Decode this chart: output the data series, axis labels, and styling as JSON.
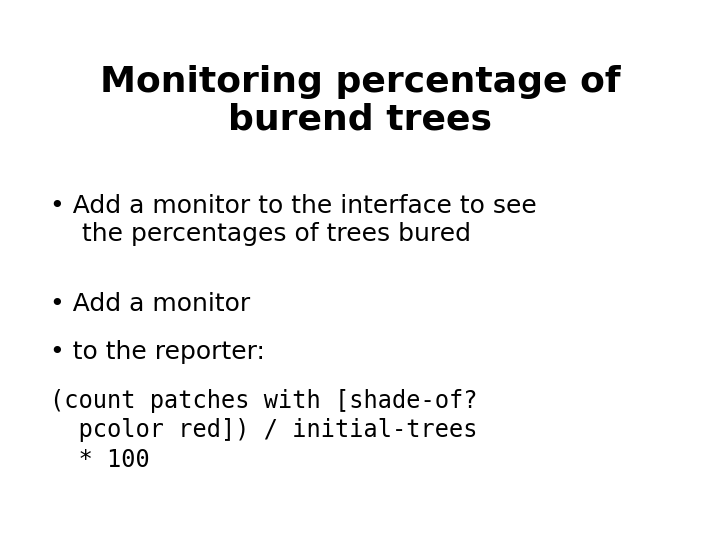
{
  "title_line1": "Monitoring percentage of",
  "title_line2": "burend trees",
  "bullet1_line1": "Add a monitor to the interface to see",
  "bullet1_line2": "the percentages of trees bured",
  "bullet2": "Add a monitor",
  "bullet3": "to the reporter:",
  "code_line1": "(count patches with [shade-of?",
  "code_line2": "  pcolor red]) / initial-trees",
  "code_line3": "  * 100",
  "bg_color": "#ffffff",
  "text_color": "#000000",
  "title_fontsize": 26,
  "bullet_fontsize": 18,
  "code_fontsize": 17,
  "fig_width": 7.2,
  "fig_height": 5.4,
  "dpi": 100
}
